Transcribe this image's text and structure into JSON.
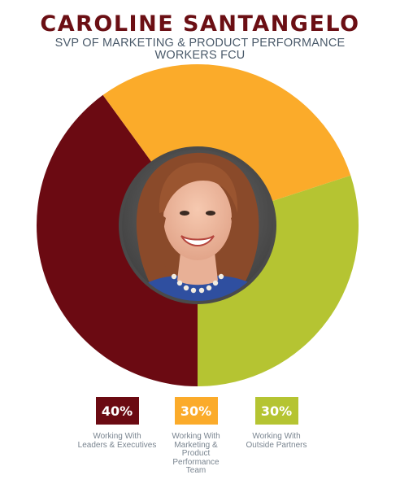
{
  "header": {
    "name": "CAROLINE SANTANGELO",
    "title_line1": "SVP OF MARKETING & PRODUCT PERFORMANCE",
    "title_line2": "WORKERS FCU"
  },
  "photo": {
    "description": "portrait-photo"
  },
  "colors": {
    "name": "#6b0f14",
    "leaders": "#6b0a12",
    "marketing": "#fbab2a",
    "partners": "#b5c432",
    "photo_ring": "#4a4a4a"
  },
  "chart_data": {
    "type": "pie",
    "title": "",
    "categories": [
      "Working With Leaders & Executives",
      "Working With Marketing & Product Performance Team",
      "Working With Outside Partners"
    ],
    "values": [
      40,
      30,
      30
    ],
    "value_labels": [
      "40%",
      "30%",
      "30%"
    ],
    "legend_lines": [
      [
        "Working With",
        "Leaders & Executives"
      ],
      [
        "Working With",
        "Marketing &",
        "Product",
        "Performance",
        "Team"
      ],
      [
        "Working With",
        "Outside Partners"
      ]
    ],
    "colors": [
      "#6b0a12",
      "#fbab2a",
      "#b5c432"
    ],
    "legend_placement": "bottom",
    "donut": true
  }
}
